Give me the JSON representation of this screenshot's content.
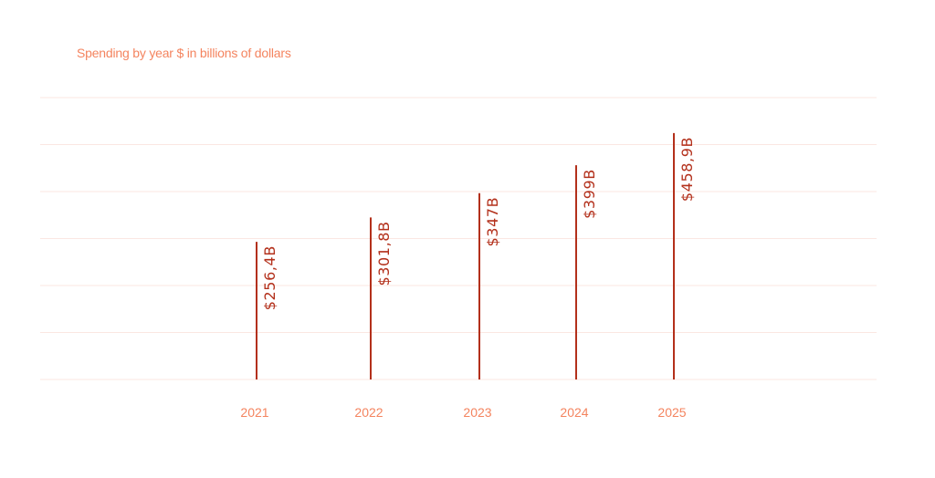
{
  "chart_data": {
    "type": "bar",
    "title": "Spending by year $ in billions of dollars",
    "categories": [
      "2021",
      "2022",
      "2023",
      "2024",
      "2025"
    ],
    "values": [
      256.4,
      301.8,
      347,
      399,
      458.9
    ],
    "value_labels": [
      "$256,4B",
      "$301,8B",
      "$347B",
      "$399B",
      "$458,9B"
    ],
    "ylim": [
      0,
      525
    ],
    "grid": true,
    "colors": {
      "bar": "#b3301b",
      "label": "#b3301b",
      "axis_text": "#f4845f",
      "grid": "#fbe7e2"
    }
  }
}
